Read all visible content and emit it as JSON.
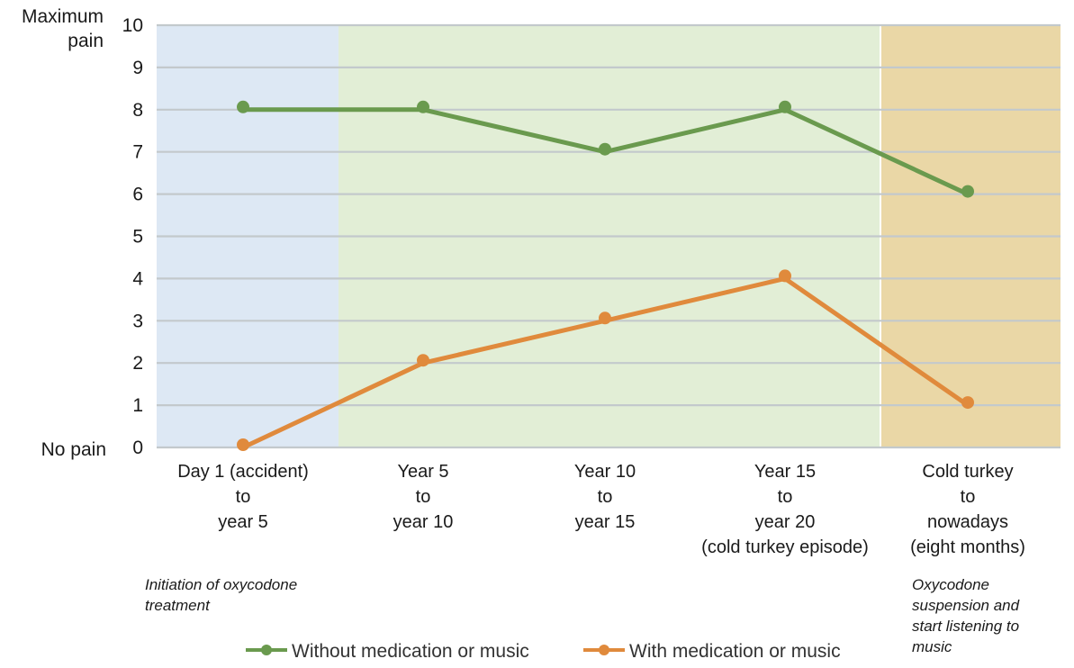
{
  "chart_data": {
    "type": "line",
    "title": "",
    "ylabel_top": [
      "Maximum",
      "pain"
    ],
    "ylabel_bottom": "No pain",
    "ylim": [
      0,
      10
    ],
    "yticks": [
      "0",
      "1",
      "2",
      "3",
      "4",
      "5",
      "6",
      "7",
      "8",
      "9",
      "10"
    ],
    "grid": true,
    "categories": [
      [
        "Day 1 (accident)",
        "to",
        "year 5"
      ],
      [
        "Year 5",
        "to",
        "year 10"
      ],
      [
        "Year 10",
        "to",
        "year 15"
      ],
      [
        "Year 15",
        "to",
        "year 20",
        "(cold turkey episode)"
      ],
      [
        "Cold turkey",
        "to",
        "nowadays",
        "(eight months)"
      ]
    ],
    "series": [
      {
        "name": "Without medication or music",
        "color": "#6a9a4e",
        "values": [
          8,
          8,
          7,
          8,
          6
        ]
      },
      {
        "name": "With medication or music",
        "color": "#e08a3c",
        "values": [
          0,
          2,
          3,
          4,
          1
        ]
      }
    ],
    "regions": [
      {
        "name": "initiation",
        "color": "#dde8f4"
      },
      {
        "name": "oxycodone",
        "color": "#e2eed6"
      },
      {
        "name": "music",
        "color": "#ead7a6"
      }
    ],
    "annotations": [
      [
        "Initiation of oxycodone",
        "treatment"
      ],
      [
        "Oxycodone",
        "suspension  and",
        "start listening to",
        "music"
      ]
    ],
    "legend_position": "bottom"
  }
}
